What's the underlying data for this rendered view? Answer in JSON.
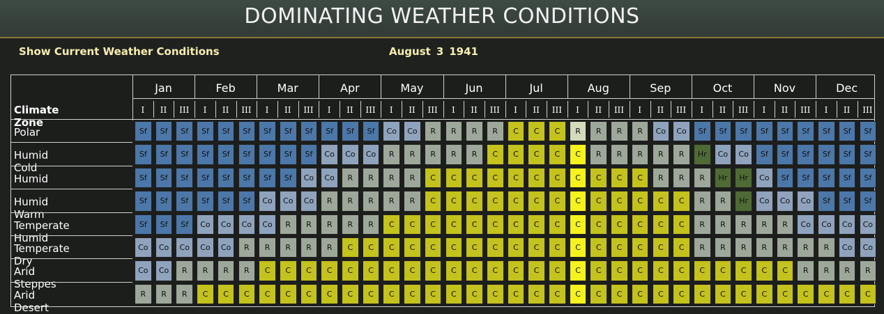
{
  "title": "DOMINATING WEATHER CONDITIONS",
  "show_link": "Show Current Weather Conditions",
  "date": {
    "month": "August",
    "day": "3",
    "year": "1941"
  },
  "table": {
    "climate_zone_header": "Climate Zone",
    "months": [
      "Jan",
      "Feb",
      "Mar",
      "Apr",
      "May",
      "Jun",
      "Jul",
      "Aug",
      "Sep",
      "Oct",
      "Nov",
      "Dec"
    ],
    "turns": [
      "I",
      "II",
      "III"
    ],
    "current_turn_index": 21,
    "zones": [
      {
        "name": "Polar",
        "cells": [
          "Sf",
          "Sf",
          "Sf",
          "Sf",
          "Sf",
          "Sf",
          "Sf",
          "Sf",
          "Sf",
          "Sf",
          "Sf",
          "Sf",
          "Co",
          "Co",
          "R",
          "R",
          "R",
          "R",
          "C",
          "C",
          "C",
          "R",
          "R",
          "R",
          "R",
          "Co",
          "Co",
          "Sf",
          "Sf",
          "Sf",
          "Sf",
          "Sf",
          "Sf",
          "Sf",
          "Sf",
          "Sf"
        ]
      },
      {
        "name": "Humid Cold",
        "cells": [
          "Sf",
          "Sf",
          "Sf",
          "Sf",
          "Sf",
          "Sf",
          "Sf",
          "Sf",
          "Sf",
          "Co",
          "Co",
          "Co",
          "R",
          "R",
          "R",
          "R",
          "R",
          "C",
          "C",
          "C",
          "C",
          "C",
          "R",
          "R",
          "R",
          "R",
          "R",
          "Hr",
          "Co",
          "Co",
          "Sf",
          "Sf",
          "Sf",
          "Sf",
          "Sf",
          "Sf"
        ]
      },
      {
        "name": "Humid",
        "cells": [
          "Sf",
          "Sf",
          "Sf",
          "Sf",
          "Sf",
          "Sf",
          "Sf",
          "Sf",
          "Co",
          "Co",
          "R",
          "R",
          "R",
          "R",
          "C",
          "C",
          "C",
          "C",
          "C",
          "C",
          "C",
          "C",
          "C",
          "C",
          "C",
          "R",
          "R",
          "R",
          "Hr",
          "Hr",
          "Co",
          "Sf",
          "Sf",
          "Sf",
          "Sf",
          "Sf"
        ]
      },
      {
        "name": "Humid Warm",
        "cells": [
          "Sf",
          "Sf",
          "Sf",
          "Sf",
          "Sf",
          "Sf",
          "Co",
          "Co",
          "Co",
          "R",
          "R",
          "R",
          "R",
          "R",
          "C",
          "C",
          "C",
          "C",
          "C",
          "C",
          "C",
          "C",
          "C",
          "C",
          "C",
          "C",
          "C",
          "R",
          "R",
          "Hr",
          "Co",
          "Co",
          "Co",
          "Sf",
          "Sf",
          "Sf"
        ]
      },
      {
        "name": "Temperate Humid",
        "cells": [
          "Sf",
          "Sf",
          "Sf",
          "Co",
          "Co",
          "Co",
          "Co",
          "R",
          "R",
          "R",
          "R",
          "R",
          "C",
          "C",
          "C",
          "C",
          "C",
          "C",
          "C",
          "C",
          "C",
          "C",
          "C",
          "C",
          "C",
          "C",
          "C",
          "R",
          "R",
          "R",
          "R",
          "R",
          "Co",
          "Co",
          "Co",
          "Co"
        ]
      },
      {
        "name": "Temperate Dry",
        "cells": [
          "Co",
          "Co",
          "Co",
          "Co",
          "Co",
          "R",
          "R",
          "R",
          "R",
          "R",
          "C",
          "C",
          "C",
          "C",
          "C",
          "C",
          "C",
          "C",
          "C",
          "C",
          "C",
          "C",
          "C",
          "C",
          "C",
          "C",
          "C",
          "R",
          "R",
          "R",
          "R",
          "R",
          "R",
          "R",
          "Co",
          "Co"
        ]
      },
      {
        "name": "Arid Steppes",
        "cells": [
          "Co",
          "Co",
          "R",
          "R",
          "R",
          "R",
          "C",
          "C",
          "C",
          "C",
          "C",
          "C",
          "C",
          "C",
          "C",
          "C",
          "C",
          "C",
          "C",
          "C",
          "C",
          "C",
          "C",
          "C",
          "C",
          "C",
          "C",
          "C",
          "C",
          "C",
          "C",
          "C",
          "R",
          "R",
          "R",
          "R"
        ]
      },
      {
        "name": "Arid Desert",
        "cells": [
          "R",
          "R",
          "R",
          "C",
          "C",
          "C",
          "C",
          "C",
          "C",
          "C",
          "C",
          "C",
          "C",
          "C",
          "C",
          "C",
          "C",
          "C",
          "C",
          "C",
          "C",
          "C",
          "C",
          "C",
          "C",
          "C",
          "C",
          "C",
          "C",
          "C",
          "C",
          "C",
          "C",
          "C",
          "C",
          "C"
        ]
      }
    ]
  },
  "colors": {
    "Sf": "#4c77a9",
    "Co": "#8fa3bd",
    "R": "#9ea89a",
    "C": "#c4c21c",
    "Hr": "#4f6a34",
    "current_R": "#d4dbbc",
    "current_C": "#f5f21d"
  }
}
